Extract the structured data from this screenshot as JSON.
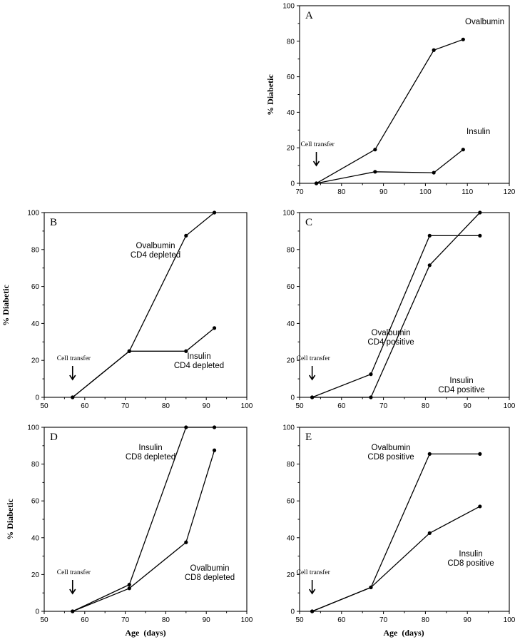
{
  "chart_data": [
    {
      "id": "A",
      "type": "line",
      "panel_label": "A",
      "ylabel": "% Diabetic",
      "xlabel": "",
      "xlim": [
        70,
        120
      ],
      "ylim": [
        0,
        100
      ],
      "xticks": [
        70,
        80,
        90,
        100,
        110,
        120
      ],
      "yticks": [
        0,
        20,
        40,
        60,
        80,
        100
      ],
      "transfer_label": "Cell transfer",
      "transfer_x": 74,
      "series": [
        {
          "name": "Ovalbumin",
          "label_lines": [
            "Ovalbumin"
          ],
          "x": [
            74,
            88,
            102,
            109
          ],
          "values": [
            0,
            19,
            75,
            81
          ]
        },
        {
          "name": "Insulin",
          "label_lines": [
            "Insulin"
          ],
          "x": [
            74,
            88,
            102,
            109
          ],
          "values": [
            0,
            6.5,
            6,
            19
          ]
        }
      ]
    },
    {
      "id": "B",
      "type": "line",
      "panel_label": "B",
      "ylabel": "% Diabetic",
      "xlabel": "",
      "xlim": [
        50,
        100
      ],
      "ylim": [
        0,
        100
      ],
      "xticks": [
        50,
        60,
        70,
        80,
        90,
        100
      ],
      "yticks": [
        0,
        20,
        40,
        60,
        80,
        100
      ],
      "transfer_label": "Cell transfer",
      "transfer_x": 57,
      "series": [
        {
          "name": "Ovalbumin CD4 depleted",
          "label_lines": [
            "Ovalbumin",
            "CD4 depleted"
          ],
          "x": [
            57,
            71,
            85,
            92
          ],
          "values": [
            0,
            25,
            87.5,
            100
          ]
        },
        {
          "name": "Insulin CD4 depleted",
          "label_lines": [
            "Insulin",
            "CD4 depleted"
          ],
          "x": [
            57,
            71,
            85,
            92
          ],
          "values": [
            0,
            25,
            25,
            37.5
          ]
        }
      ]
    },
    {
      "id": "C",
      "type": "line",
      "panel_label": "C",
      "ylabel": "",
      "xlabel": "",
      "xlim": [
        50,
        100
      ],
      "ylim": [
        0,
        100
      ],
      "xticks": [
        50,
        60,
        70,
        80,
        90,
        100
      ],
      "yticks": [
        0,
        20,
        40,
        60,
        80,
        100
      ],
      "transfer_label": "Cell transfer",
      "transfer_x": 53,
      "series": [
        {
          "name": "Ovalbumin CD4 positive",
          "label_lines": [
            "Ovalbumin",
            "CD4 positive"
          ],
          "x": [
            53,
            67,
            81,
            93
          ],
          "values": [
            0,
            12.5,
            87.5,
            87.5
          ]
        },
        {
          "name": "Insulin CD4 positive",
          "label_lines": [
            "Insulin",
            "CD4 positive"
          ],
          "x": [
            53,
            67,
            81,
            93
          ],
          "values": [
            0,
            0,
            71.5,
            100
          ]
        }
      ]
    },
    {
      "id": "D",
      "type": "line",
      "panel_label": "D",
      "ylabel": "% Diabetic",
      "xlabel": "Age  (days)",
      "xlim": [
        50,
        100
      ],
      "ylim": [
        0,
        100
      ],
      "xticks": [
        50,
        60,
        70,
        80,
        90,
        100
      ],
      "yticks": [
        0,
        20,
        40,
        60,
        80,
        100
      ],
      "transfer_label": "Cell transfer",
      "transfer_x": 57,
      "series": [
        {
          "name": "Insulin CD8 depleted",
          "label_lines": [
            "Insulin",
            "CD8 depleted"
          ],
          "x": [
            57,
            71,
            85,
            92
          ],
          "values": [
            0,
            14.5,
            100,
            100
          ]
        },
        {
          "name": "Ovalbumin CD8 depleted",
          "label_lines": [
            "Ovalbumin",
            "CD8 depleted"
          ],
          "x": [
            57,
            71,
            85,
            92
          ],
          "values": [
            0,
            12.5,
            37.5,
            87.5
          ]
        }
      ]
    },
    {
      "id": "E",
      "type": "line",
      "panel_label": "E",
      "ylabel": "",
      "xlabel": "Age  (days)",
      "xlim": [
        50,
        100
      ],
      "ylim": [
        0,
        100
      ],
      "xticks": [
        50,
        60,
        70,
        80,
        90,
        100
      ],
      "yticks": [
        0,
        20,
        40,
        60,
        80,
        100
      ],
      "transfer_label": "Cell transfer",
      "transfer_x": 53,
      "series": [
        {
          "name": "Ovalbumin CD8 positive",
          "label_lines": [
            "Ovalbumin",
            "CD8 positive"
          ],
          "x": [
            53,
            67,
            81,
            93
          ],
          "values": [
            0,
            13,
            85.5,
            85.5
          ]
        },
        {
          "name": "Insulin CD8 positive",
          "label_lines": [
            "Insulin",
            "CD8 positive"
          ],
          "x": [
            53,
            67,
            81,
            93
          ],
          "values": [
            0,
            13,
            42.5,
            57
          ]
        }
      ]
    }
  ]
}
